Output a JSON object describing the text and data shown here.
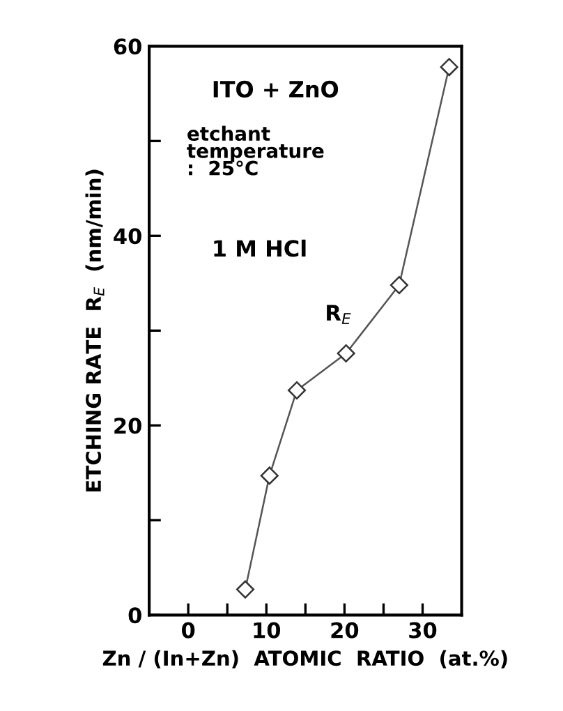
{
  "chart_data": {
    "type": "line",
    "xlabel": "Zn / (In+Zn)  ATOMIC  RATIO  (at.%)",
    "ylabel": "ETCHING RATE  R$_{E}$  (nm/min)",
    "annotations": [
      "ITO + ZnO",
      "etchant\ntemperature\n:  25°C",
      "1 M HCl"
    ],
    "series": [
      {
        "name": "R$_{E}$",
        "color": "#555555",
        "x": [
          7.3,
          10.4,
          13.9,
          20.2,
          27.0,
          33.4
        ],
        "values": [
          2.7,
          14.7,
          23.7,
          27.6,
          34.8,
          57.8
        ]
      }
    ],
    "xlim": [
      -5,
      35
    ],
    "xticks": [
      0,
      {
        "value": 5,
        "label": null
      },
      10,
      {
        "value": 15,
        "label": null
      },
      20,
      {
        "value": 25,
        "label": null
      },
      30
    ],
    "ylim": [
      0,
      60
    ],
    "yticks": [
      0,
      {
        "value": 10,
        "label": null
      },
      20,
      {
        "value": 30,
        "label": null
      },
      40,
      {
        "value": 50,
        "label": null
      },
      60
    ],
    "grid": false,
    "legend": false,
    "marker": "diamond",
    "line_style": "solid"
  }
}
